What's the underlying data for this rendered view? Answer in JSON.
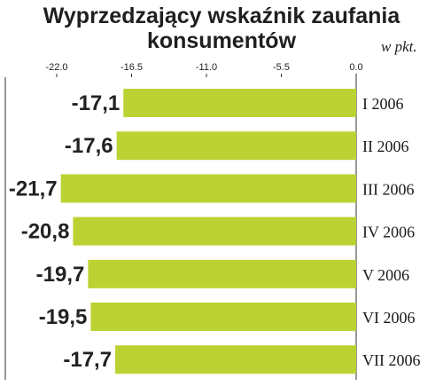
{
  "colors": {
    "bar": "#bcd233",
    "axis": "#333333",
    "text": "#222222"
  },
  "chart_data": {
    "type": "bar",
    "orientation": "horizontal",
    "title": [
      "Wyprzedzający wskaźnik zaufania",
      "konsumentów"
    ],
    "unit": "w pkt.",
    "xlim": [
      -22.0,
      0.0
    ],
    "ticks": [
      -22.0,
      -16.5,
      -11.0,
      -5.5,
      0.0
    ],
    "tick_labels": [
      "-22.0",
      "-16.5",
      "-11.0",
      "-5.5",
      "0.0"
    ],
    "categories": [
      "I 2006",
      "II 2006",
      "III 2006",
      "IV 2006",
      "V 2006",
      "VI 2006",
      "VII 2006"
    ],
    "values": [
      -17.1,
      -17.6,
      -21.7,
      -20.8,
      -19.7,
      -19.5,
      -17.7
    ],
    "value_labels": [
      "-17,1",
      "-17,6",
      "-21,7",
      "-20,8",
      "-19,7",
      "-19,5",
      "-17,7"
    ],
    "grid": false,
    "legend": "none"
  }
}
